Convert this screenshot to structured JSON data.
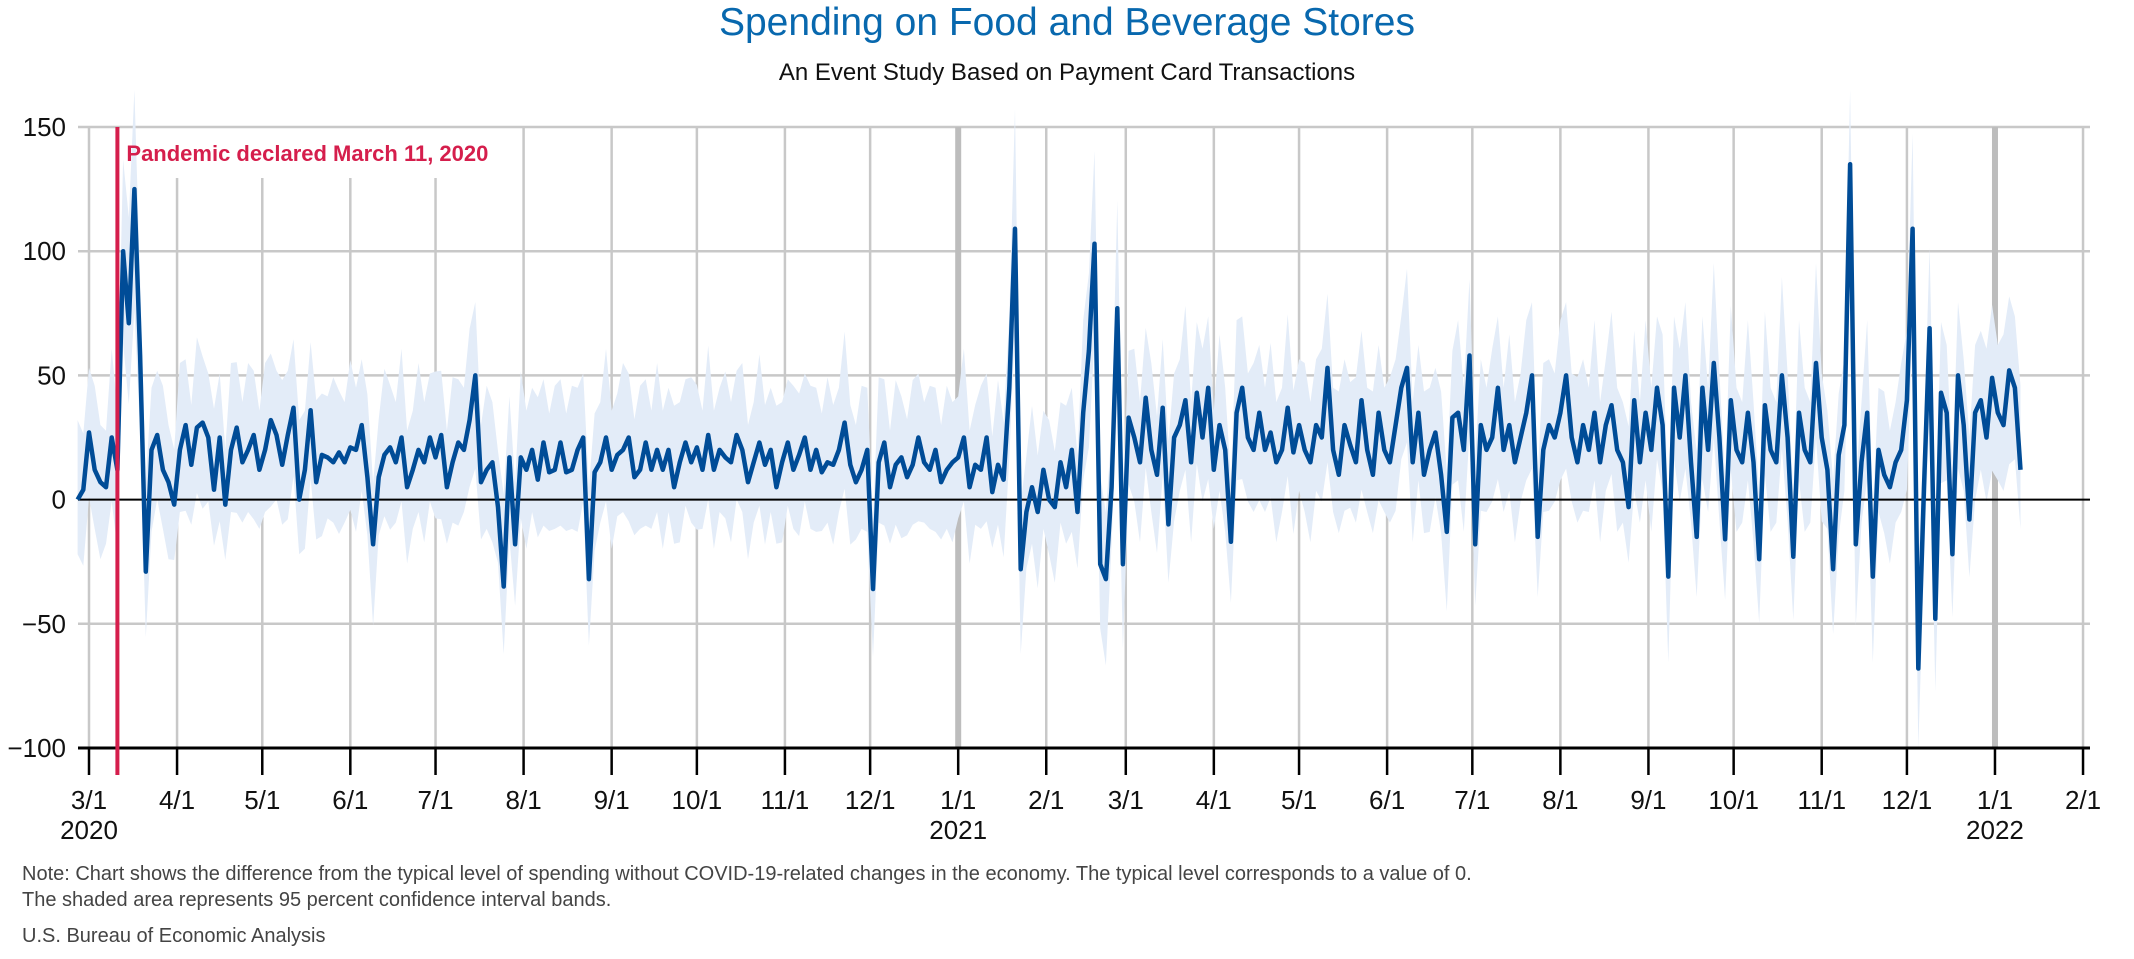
{
  "header": {
    "title": "Spending on Food and Beverage Stores",
    "subtitle": "An Event Study Based on Payment Card Transactions"
  },
  "footer": {
    "note_line1": "Note: Chart shows the difference from the typical level of spending without COVID-19-related changes in the economy. The typical level corresponds to a value of 0.",
    "note_line2": "The shaded area represents 95 percent confidence interval bands.",
    "source": "U.S. Bureau of Economic Analysis"
  },
  "colors": {
    "title": "#0868AE",
    "line": "#004C97",
    "band": "#E3ECF8",
    "annotation": "#D51E4C",
    "grid": "#C8C8C8",
    "year_grid": "#BDBDBD",
    "axis": "#000000"
  },
  "chart_data": {
    "type": "line",
    "title": "Spending on Food and Beverage Stores",
    "subtitle": "An Event Study Based on Payment Card Transactions",
    "xlabel": "",
    "ylabel": "",
    "ylim": [
      -100,
      150
    ],
    "yticks": [
      150,
      100,
      50,
      0,
      -50,
      -100
    ],
    "x_start_date": "2020-02-26",
    "x_end_date": "2022-02-03",
    "grid": true,
    "legend": "none",
    "x_ticks": [
      {
        "date": "2020-03-01",
        "label": "3/1",
        "year": "2020"
      },
      {
        "date": "2020-04-01",
        "label": "4/1",
        "year": ""
      },
      {
        "date": "2020-05-01",
        "label": "5/1",
        "year": ""
      },
      {
        "date": "2020-06-01",
        "label": "6/1",
        "year": ""
      },
      {
        "date": "2020-07-01",
        "label": "7/1",
        "year": ""
      },
      {
        "date": "2020-08-01",
        "label": "8/1",
        "year": ""
      },
      {
        "date": "2020-09-01",
        "label": "9/1",
        "year": ""
      },
      {
        "date": "2020-10-01",
        "label": "10/1",
        "year": ""
      },
      {
        "date": "2020-11-01",
        "label": "11/1",
        "year": ""
      },
      {
        "date": "2020-12-01",
        "label": "12/1",
        "year": ""
      },
      {
        "date": "2021-01-01",
        "label": "1/1",
        "year": "2021"
      },
      {
        "date": "2021-02-01",
        "label": "2/1",
        "year": ""
      },
      {
        "date": "2021-03-01",
        "label": "3/1",
        "year": ""
      },
      {
        "date": "2021-04-01",
        "label": "4/1",
        "year": ""
      },
      {
        "date": "2021-05-01",
        "label": "5/1",
        "year": ""
      },
      {
        "date": "2021-06-01",
        "label": "6/1",
        "year": ""
      },
      {
        "date": "2021-07-01",
        "label": "7/1",
        "year": ""
      },
      {
        "date": "2021-08-01",
        "label": "8/1",
        "year": ""
      },
      {
        "date": "2021-09-01",
        "label": "9/1",
        "year": ""
      },
      {
        "date": "2021-10-01",
        "label": "10/1",
        "year": ""
      },
      {
        "date": "2021-11-01",
        "label": "11/1",
        "year": ""
      },
      {
        "date": "2021-12-01",
        "label": "12/1",
        "year": ""
      },
      {
        "date": "2022-01-01",
        "label": "1/1",
        "year": "2022"
      },
      {
        "date": "2022-02-01",
        "label": "2/1",
        "year": ""
      }
    ],
    "annotation": {
      "date": "2020-03-11",
      "label": "Pandemic declared March 11, 2020"
    },
    "series": [
      {
        "name": "Difference from typical spending",
        "x_start_date": "2020-02-26",
        "step_days": 2,
        "values": [
          0,
          4,
          27,
          12,
          7,
          5,
          25,
          12,
          100,
          71,
          125,
          58,
          -29,
          20,
          26,
          12,
          7,
          -2,
          20,
          30,
          14,
          29,
          31,
          25,
          4,
          25,
          -2,
          20,
          29,
          15,
          20,
          26,
          12,
          20,
          32,
          26,
          14,
          26,
          37,
          0,
          12,
          36,
          7,
          18,
          17,
          15,
          19,
          15,
          21,
          20,
          30,
          9,
          -18,
          9,
          18,
          21,
          15,
          25,
          5,
          12,
          20,
          15,
          25,
          17,
          26,
          5,
          15,
          23,
          20,
          32,
          50,
          7,
          12,
          15,
          -3,
          -35,
          17,
          -18,
          17,
          12,
          20,
          8,
          23,
          11,
          12,
          23,
          11,
          12,
          20,
          25,
          -32,
          11,
          15,
          25,
          12,
          18,
          20,
          25,
          9,
          12,
          23,
          12,
          20,
          12,
          20,
          5,
          15,
          23,
          15,
          21,
          12,
          26,
          12,
          20,
          17,
          15,
          26,
          20,
          7,
          15,
          23,
          14,
          20,
          5,
          15,
          23,
          12,
          18,
          25,
          12,
          20,
          11,
          15,
          14,
          20,
          31,
          14,
          7,
          12,
          20,
          -36,
          15,
          23,
          5,
          14,
          17,
          9,
          14,
          25,
          15,
          12,
          20,
          7,
          12,
          15,
          17,
          25,
          5,
          14,
          12,
          25,
          3,
          14,
          8,
          45,
          109,
          -28,
          -5,
          5,
          -5,
          12,
          0,
          -3,
          15,
          5,
          20,
          -5,
          35,
          60,
          103,
          -26,
          -32,
          5,
          77,
          -26,
          33,
          25,
          15,
          41,
          20,
          10,
          37,
          -10,
          25,
          30,
          40,
          15,
          43,
          25,
          45,
          12,
          30,
          20,
          -17,
          35,
          45,
          25,
          20,
          35,
          20,
          27,
          15,
          20,
          37,
          19,
          30,
          20,
          15,
          30,
          25,
          53,
          20,
          10,
          30,
          22,
          15,
          40,
          20,
          10,
          35,
          20,
          15,
          30,
          45,
          53,
          15,
          35,
          10,
          20,
          27,
          10,
          -13,
          33,
          35,
          20,
          58,
          -18,
          30,
          20,
          25,
          45,
          20,
          30,
          15,
          25,
          35,
          50,
          -15,
          20,
          30,
          25,
          35,
          50,
          25,
          15,
          30,
          20,
          35,
          15,
          30,
          38,
          20,
          15,
          -3,
          40,
          15,
          35,
          20,
          45,
          30,
          -31,
          45,
          25,
          50,
          15,
          -15,
          45,
          20,
          55,
          25,
          -16,
          40,
          20,
          15,
          35,
          15,
          -24,
          38,
          20,
          15,
          50,
          25,
          -23,
          35,
          20,
          15,
          55,
          25,
          12,
          -28,
          18,
          30,
          135,
          -18,
          15,
          35,
          -31,
          20,
          10,
          5,
          15,
          20,
          40,
          109,
          -68,
          5,
          69,
          -48,
          43,
          35,
          -22,
          50,
          30,
          -8,
          35,
          40,
          25,
          49,
          35,
          30,
          52,
          45,
          12
        ]
      }
    ],
    "band": {
      "name": "95 percent confidence interval",
      "half_width_typical": 22
    }
  }
}
